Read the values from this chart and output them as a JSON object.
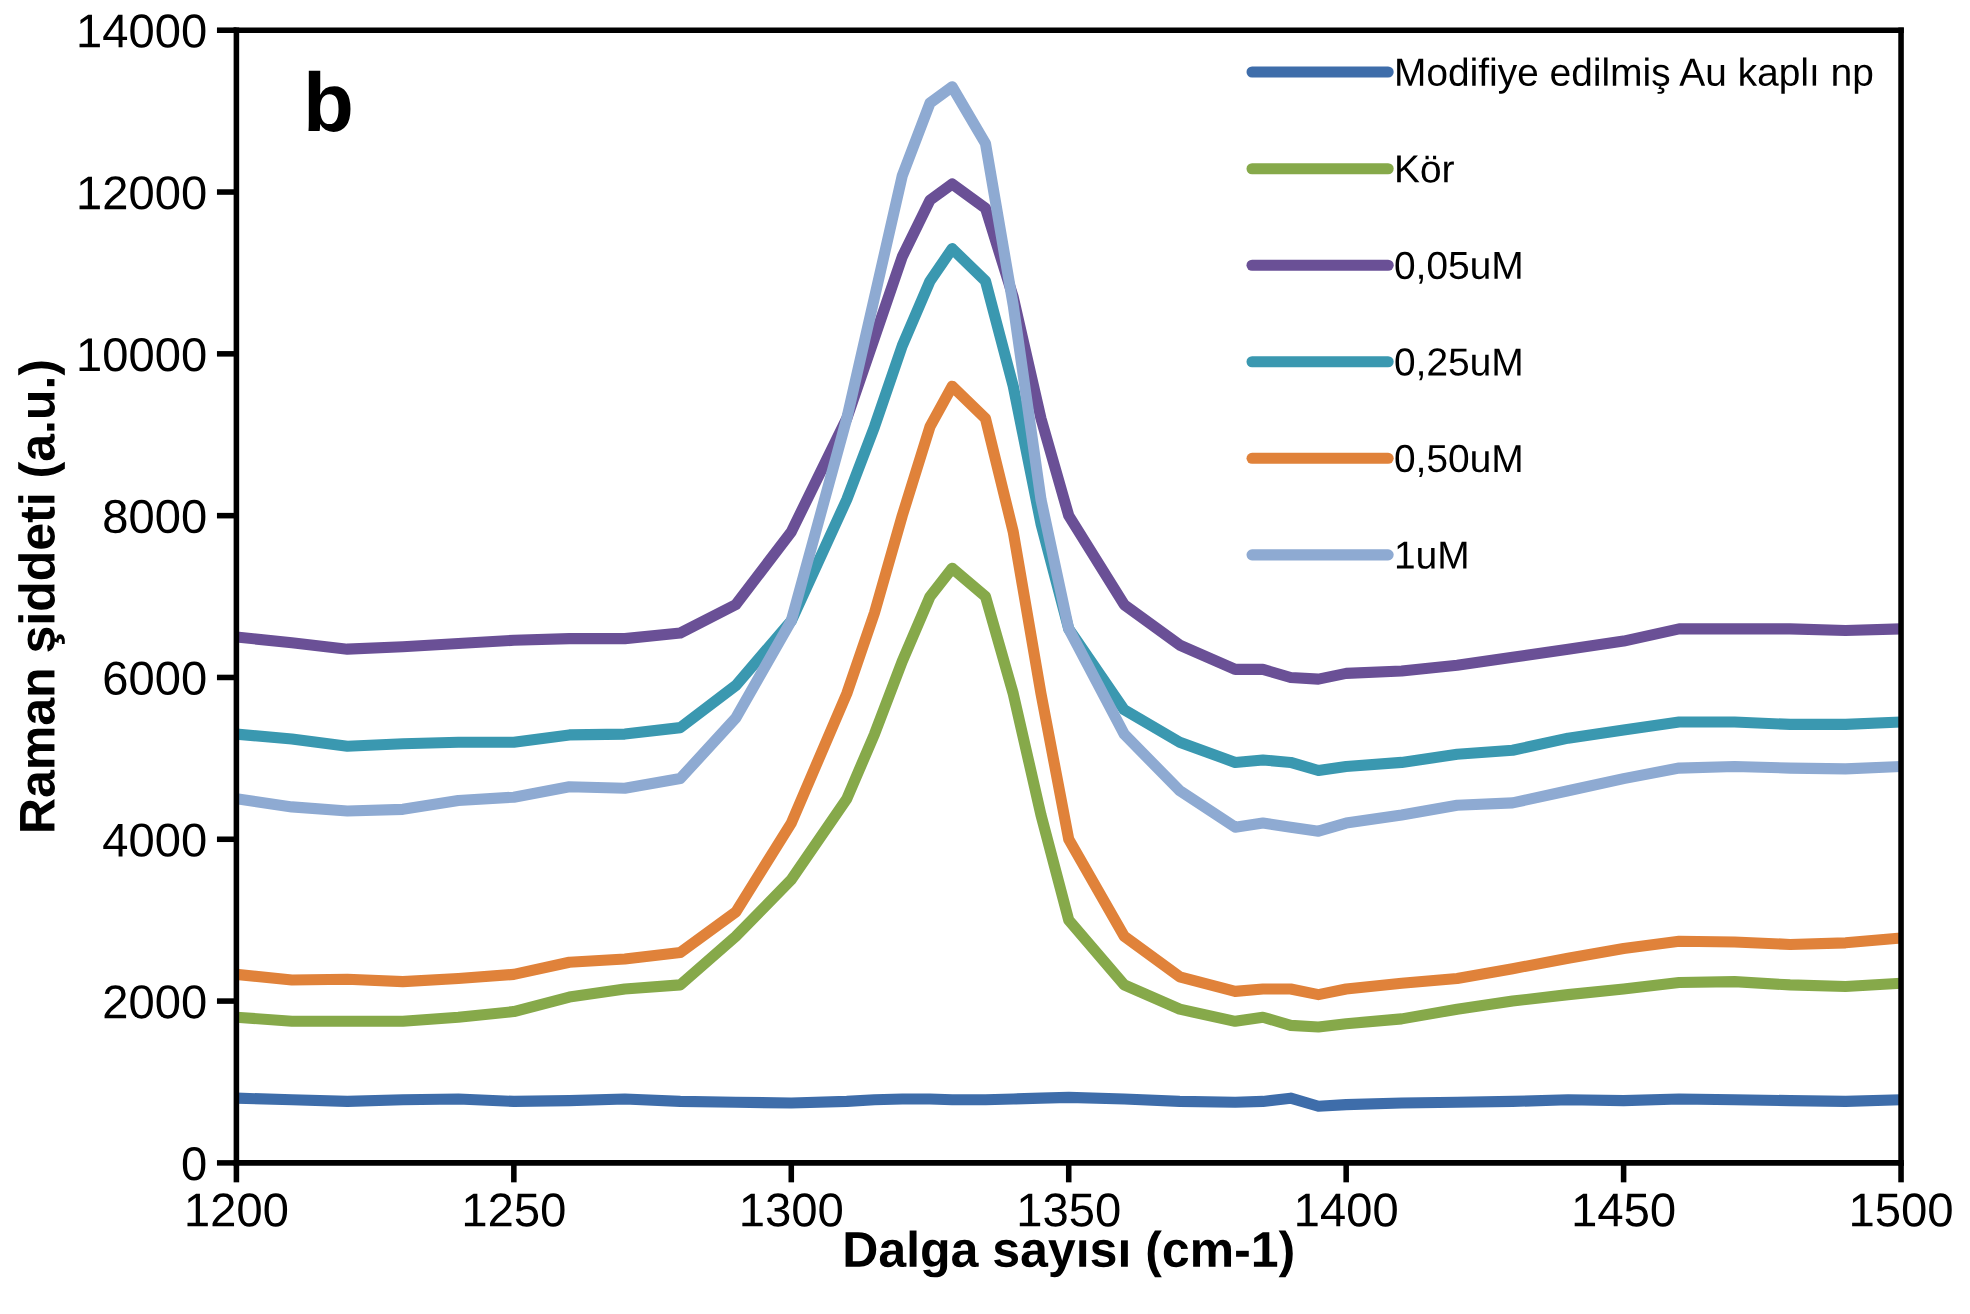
{
  "chart_data": {
    "type": "line",
    "xlabel": "Dalga sayısı (cm-1)",
    "ylabel": "Raman şiddeti (a.u.)",
    "x": [
      1200,
      1210,
      1220,
      1230,
      1240,
      1250,
      1260,
      1270,
      1280,
      1290,
      1300,
      1310,
      1315,
      1320,
      1325,
      1329,
      1335,
      1340,
      1345,
      1350,
      1360,
      1370,
      1380,
      1385,
      1390,
      1395,
      1400,
      1410,
      1420,
      1430,
      1440,
      1450,
      1460,
      1470,
      1480,
      1490,
      1500
    ],
    "xlim": [
      1200,
      1500
    ],
    "xticks": [
      1200,
      1250,
      1300,
      1350,
      1400,
      1450,
      1500
    ],
    "ylim": [
      0,
      14000
    ],
    "yticks": [
      0,
      2000,
      4000,
      6000,
      8000,
      10000,
      12000,
      14000
    ],
    "grid": false,
    "legend": "top right",
    "annotations": [
      "b"
    ],
    "series": [
      {
        "name": "Modifiye edilmiş Au kaplı np",
        "color": "#3e6daa",
        "values": [
          800,
          780,
          760,
          780,
          790,
          760,
          770,
          790,
          760,
          750,
          740,
          760,
          780,
          790,
          790,
          780,
          780,
          790,
          800,
          810,
          790,
          760,
          750,
          760,
          800,
          700,
          720,
          740,
          750,
          760,
          780,
          770,
          790,
          780,
          770,
          760,
          780
        ]
      },
      {
        "name": "Kör",
        "color": "#86a94a",
        "values": [
          1800,
          1750,
          1750,
          1750,
          1800,
          1870,
          2050,
          2150,
          2200,
          2800,
          3500,
          4500,
          5300,
          6200,
          7000,
          7350,
          7000,
          5800,
          4300,
          3000,
          2200,
          1900,
          1750,
          1800,
          1700,
          1680,
          1720,
          1780,
          1900,
          2000,
          2080,
          2150,
          2230,
          2240,
          2200,
          2180,
          2220
        ]
      },
      {
        "name": "0,05uM",
        "color": "#6a5096",
        "values": [
          6500,
          6430,
          6350,
          6380,
          6420,
          6460,
          6480,
          6480,
          6550,
          6900,
          7800,
          9200,
          10200,
          11200,
          11900,
          12100,
          11800,
          10700,
          9200,
          8000,
          6900,
          6400,
          6100,
          6100,
          6000,
          5980,
          6050,
          6080,
          6150,
          6250,
          6350,
          6450,
          6600,
          6600,
          6600,
          6580,
          6600
        ]
      },
      {
        "name": "0,25uM",
        "color": "#3a98b0",
        "values": [
          5300,
          5240,
          5150,
          5180,
          5200,
          5200,
          5290,
          5300,
          5380,
          5900,
          6700,
          8200,
          9100,
          10100,
          10900,
          11300,
          10900,
          9600,
          7900,
          6600,
          5600,
          5200,
          4950,
          4980,
          4950,
          4850,
          4900,
          4950,
          5050,
          5100,
          5250,
          5350,
          5450,
          5450,
          5420,
          5420,
          5450
        ]
      },
      {
        "name": "0,50uM",
        "color": "#e0823a",
        "values": [
          2330,
          2260,
          2270,
          2240,
          2280,
          2330,
          2480,
          2520,
          2600,
          3100,
          4200,
          5800,
          6800,
          8000,
          9100,
          9600,
          9200,
          7800,
          5800,
          4000,
          2800,
          2300,
          2120,
          2150,
          2150,
          2080,
          2150,
          2220,
          2280,
          2400,
          2530,
          2650,
          2740,
          2730,
          2700,
          2720,
          2780
        ]
      },
      {
        "name": "1uM",
        "color": "#8eaad2",
        "values": [
          4500,
          4400,
          4350,
          4370,
          4480,
          4520,
          4650,
          4630,
          4750,
          5500,
          6700,
          9200,
          10700,
          12200,
          13100,
          13300,
          12600,
          10600,
          8200,
          6600,
          5300,
          4600,
          4150,
          4200,
          4150,
          4100,
          4200,
          4300,
          4420,
          4450,
          4600,
          4750,
          4880,
          4900,
          4880,
          4870,
          4900
        ]
      }
    ]
  }
}
